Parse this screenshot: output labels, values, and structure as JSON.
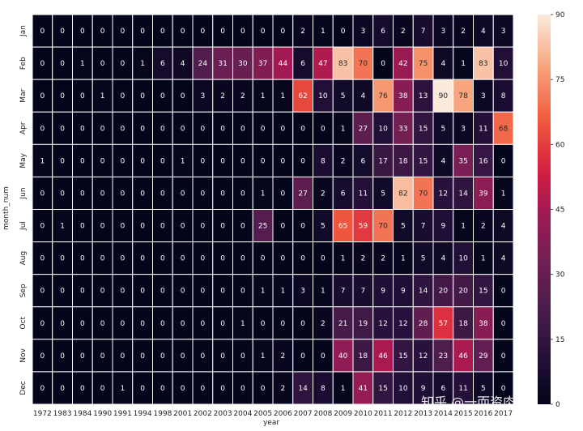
{
  "chart_data": {
    "type": "heatmap",
    "title": "",
    "xlabel": "year",
    "ylabel": "month_num",
    "x_categories": [
      "1972",
      "1983",
      "1984",
      "1990",
      "1991",
      "1994",
      "1998",
      "2001",
      "2002",
      "2003",
      "2004",
      "2005",
      "2006",
      "2007",
      "2008",
      "2009",
      "2010",
      "2011",
      "2012",
      "2013",
      "2014",
      "2015",
      "2016",
      "2017"
    ],
    "y_categories": [
      "Jan",
      "Feb",
      "Mar",
      "Apr",
      "May",
      "Jun",
      "Jul",
      "Aug",
      "Sep",
      "Oct",
      "Nov",
      "Dec"
    ],
    "values": [
      [
        0,
        0,
        0,
        0,
        0,
        0,
        0,
        0,
        0,
        0,
        0,
        0,
        0,
        2,
        1,
        0,
        3,
        6,
        2,
        7,
        3,
        2,
        4,
        3
      ],
      [
        0,
        0,
        1,
        0,
        0,
        1,
        6,
        4,
        24,
        31,
        30,
        37,
        44,
        6,
        47,
        83,
        70,
        0,
        42,
        75,
        4,
        1,
        83,
        10
      ],
      [
        0,
        0,
        0,
        1,
        0,
        0,
        0,
        0,
        3,
        2,
        2,
        1,
        1,
        62,
        10,
        5,
        4,
        76,
        38,
        13,
        90,
        78,
        3,
        8
      ],
      [
        0,
        0,
        0,
        0,
        0,
        0,
        0,
        0,
        0,
        0,
        0,
        0,
        0,
        0,
        0,
        1,
        27,
        10,
        33,
        15,
        5,
        3,
        11,
        68
      ],
      [
        1,
        0,
        0,
        0,
        0,
        0,
        0,
        1,
        0,
        0,
        0,
        0,
        0,
        0,
        8,
        2,
        6,
        17,
        18,
        15,
        4,
        35,
        16,
        0
      ],
      [
        0,
        0,
        0,
        0,
        0,
        0,
        0,
        0,
        0,
        0,
        0,
        1,
        0,
        27,
        2,
        6,
        11,
        5,
        82,
        70,
        12,
        14,
        39,
        1
      ],
      [
        0,
        1,
        0,
        0,
        0,
        0,
        0,
        0,
        0,
        0,
        0,
        25,
        0,
        0,
        5,
        65,
        59,
        70,
        5,
        7,
        9,
        1,
        2,
        4
      ],
      [
        0,
        0,
        0,
        0,
        0,
        0,
        0,
        0,
        0,
        0,
        0,
        0,
        0,
        0,
        0,
        1,
        2,
        2,
        1,
        5,
        4,
        10,
        1,
        4
      ],
      [
        0,
        0,
        0,
        0,
        0,
        0,
        0,
        0,
        0,
        0,
        0,
        1,
        1,
        3,
        1,
        7,
        7,
        9,
        9,
        14,
        20,
        20,
        15,
        0
      ],
      [
        0,
        0,
        0,
        0,
        0,
        0,
        0,
        0,
        0,
        0,
        1,
        0,
        0,
        0,
        2,
        21,
        19,
        12,
        12,
        28,
        57,
        18,
        38,
        0
      ],
      [
        0,
        0,
        0,
        0,
        0,
        0,
        0,
        0,
        0,
        0,
        0,
        1,
        2,
        0,
        0,
        40,
        18,
        46,
        15,
        12,
        23,
        46,
        29,
        0
      ],
      [
        0,
        0,
        0,
        0,
        1,
        0,
        0,
        0,
        0,
        0,
        0,
        0,
        2,
        14,
        8,
        1,
        41,
        15,
        10,
        9,
        6,
        11,
        5,
        0
      ]
    ],
    "colorbar": {
      "min": 0,
      "max": 90,
      "ticks": [
        0,
        15,
        30,
        45,
        60,
        75,
        90
      ],
      "colormap": "rocket"
    },
    "annotations": "cell values shown",
    "grid_line_color": "#ffffff"
  },
  "watermark": "知乎 @一而资肉无"
}
